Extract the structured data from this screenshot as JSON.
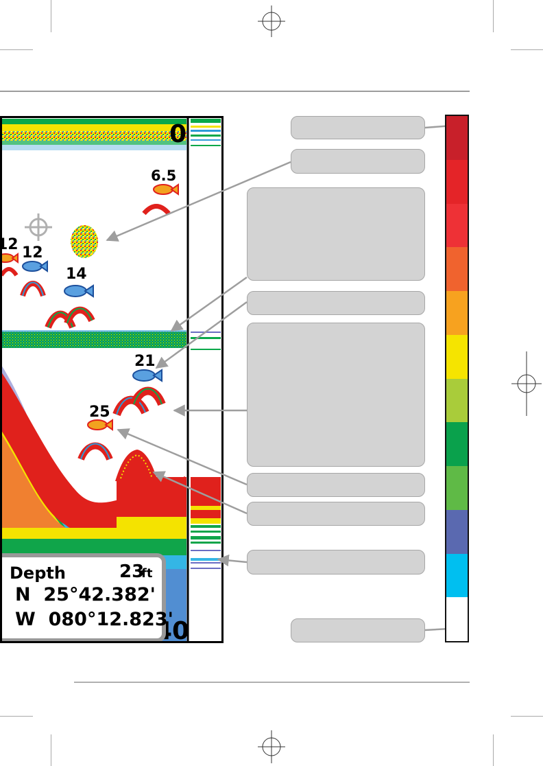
{
  "sonar": {
    "top_depth": "0",
    "bottom_depth": "40",
    "fish_depths": [
      "6.5",
      "12",
      "12",
      "14",
      "21",
      "25"
    ]
  },
  "info_box": {
    "depth_label": "Depth",
    "depth_value": "23",
    "depth_unit": "ft",
    "latitude": "N  25°42.382'",
    "longitude": "W  080°12.823'"
  },
  "colors": {
    "sonar_frame": "#000000",
    "info_border": "#999999",
    "callout_fill": "#d3d3d3",
    "arrow": "#9e9e9e",
    "return_red": "#e0211c",
    "return_yellow": "#f5e600",
    "return_green": "#0aa84a",
    "return_blue": "#2e9bd8"
  },
  "color_scale": [
    "#c8202a",
    "#e42428",
    "#ee3136",
    "#f0632e",
    "#f7a21f",
    "#f5e400",
    "#a9cc3a",
    "#0aa14c",
    "#5fba46",
    "#5a69b0",
    "#00bff0",
    "#ffffff"
  ]
}
